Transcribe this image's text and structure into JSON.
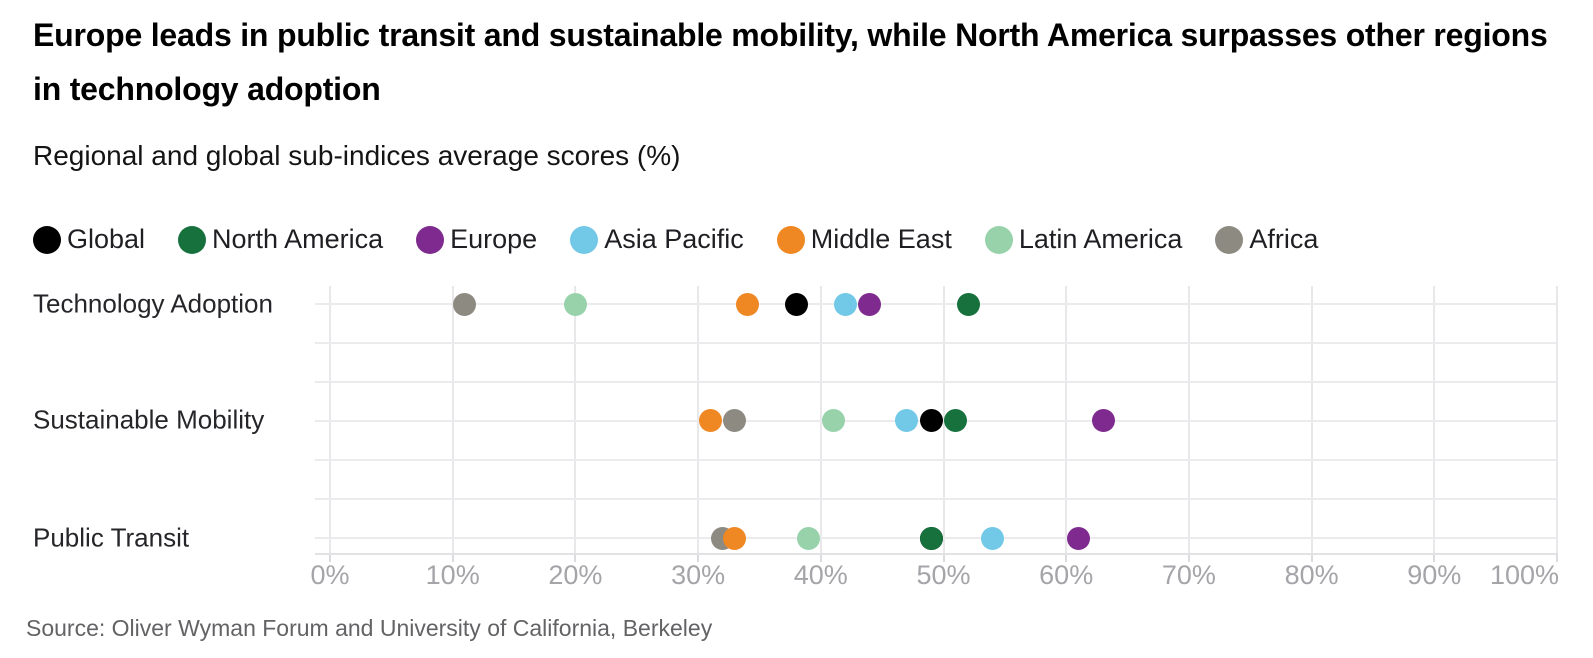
{
  "title": "Europe leads in public transit and sustainable mobility, while North America surpasses other regions in technology adoption",
  "subtitle": "Regional and global sub-indices average scores (%)",
  "source": "Source: Oliver Wyman Forum and University of California, Berkeley",
  "colors": {
    "grid": "#e8e8ea",
    "axis_text": "#a5a5a9"
  },
  "chart_data": {
    "type": "scatter",
    "orientation": "horizontal-dot-plot",
    "categories": [
      "Technology Adoption",
      "Sustainable Mobility",
      "Public Transit"
    ],
    "series": [
      {
        "name": "Global",
        "color": "#000000",
        "values": [
          38,
          49,
          49
        ]
      },
      {
        "name": "North America",
        "color": "#17713c",
        "values": [
          52,
          51,
          49
        ]
      },
      {
        "name": "Europe",
        "color": "#7e2a8e",
        "values": [
          44,
          63,
          61
        ]
      },
      {
        "name": "Asia Pacific",
        "color": "#72c8e7",
        "values": [
          42,
          47,
          54
        ]
      },
      {
        "name": "Middle East",
        "color": "#ef8722",
        "values": [
          34,
          31,
          33
        ]
      },
      {
        "name": "Latin America",
        "color": "#97d2ab",
        "values": [
          20,
          41,
          39
        ]
      },
      {
        "name": "Africa",
        "color": "#8d8a82",
        "values": [
          11,
          33,
          32
        ]
      }
    ],
    "draw_order": [
      "Africa",
      "Latin America",
      "Middle East",
      "Asia Pacific",
      "Global",
      "North America",
      "Europe"
    ],
    "x_ticks": [
      "0%",
      "10%",
      "20%",
      "30%",
      "40%",
      "50%",
      "60%",
      "70%",
      "80%",
      "90%",
      "100%"
    ],
    "xlim": [
      0,
      100
    ],
    "grid": true,
    "legend_position": "top"
  }
}
